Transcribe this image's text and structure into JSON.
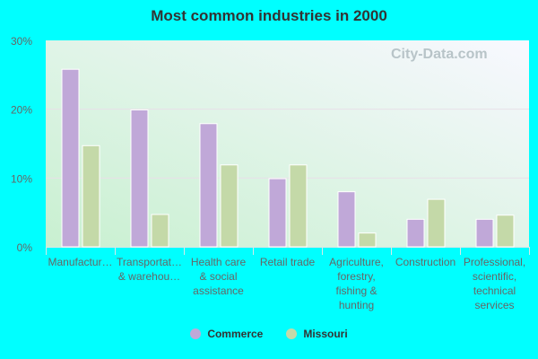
{
  "chart_data": {
    "type": "bar",
    "title": "Most common industries in 2000",
    "categories": [
      "Manufactur…",
      "Transportat… & warehou…",
      "Health care & social assistance",
      "Retail trade",
      "Agriculture, forestry, fishing & hunting",
      "Construction",
      "Professional, scientific, technical services"
    ],
    "category_lines": [
      [
        "Manufactur…"
      ],
      [
        "Transportat…",
        "& warehou…"
      ],
      [
        "Health care",
        "& social",
        "assistance"
      ],
      [
        "Retail trade"
      ],
      [
        "Agriculture,",
        "forestry,",
        "fishing &",
        "hunting"
      ],
      [
        "Construction"
      ],
      [
        "Professional,",
        "scientific,",
        "technical",
        "services"
      ]
    ],
    "series": [
      {
        "name": "Commerce",
        "color": "#c0a8d8",
        "values": [
          25.8,
          19.9,
          17.9,
          9.9,
          8.0,
          4.0,
          4.0
        ]
      },
      {
        "name": "Missouri",
        "color": "#c4d9a8",
        "values": [
          14.7,
          4.7,
          11.9,
          11.9,
          2.0,
          6.9,
          4.6
        ]
      }
    ],
    "ylim": [
      0,
      30
    ],
    "yticks": [
      "0%",
      "10%",
      "20%",
      "30%"
    ],
    "grid": true,
    "legend_position": "bottom",
    "watermark": "City-Data.com"
  }
}
